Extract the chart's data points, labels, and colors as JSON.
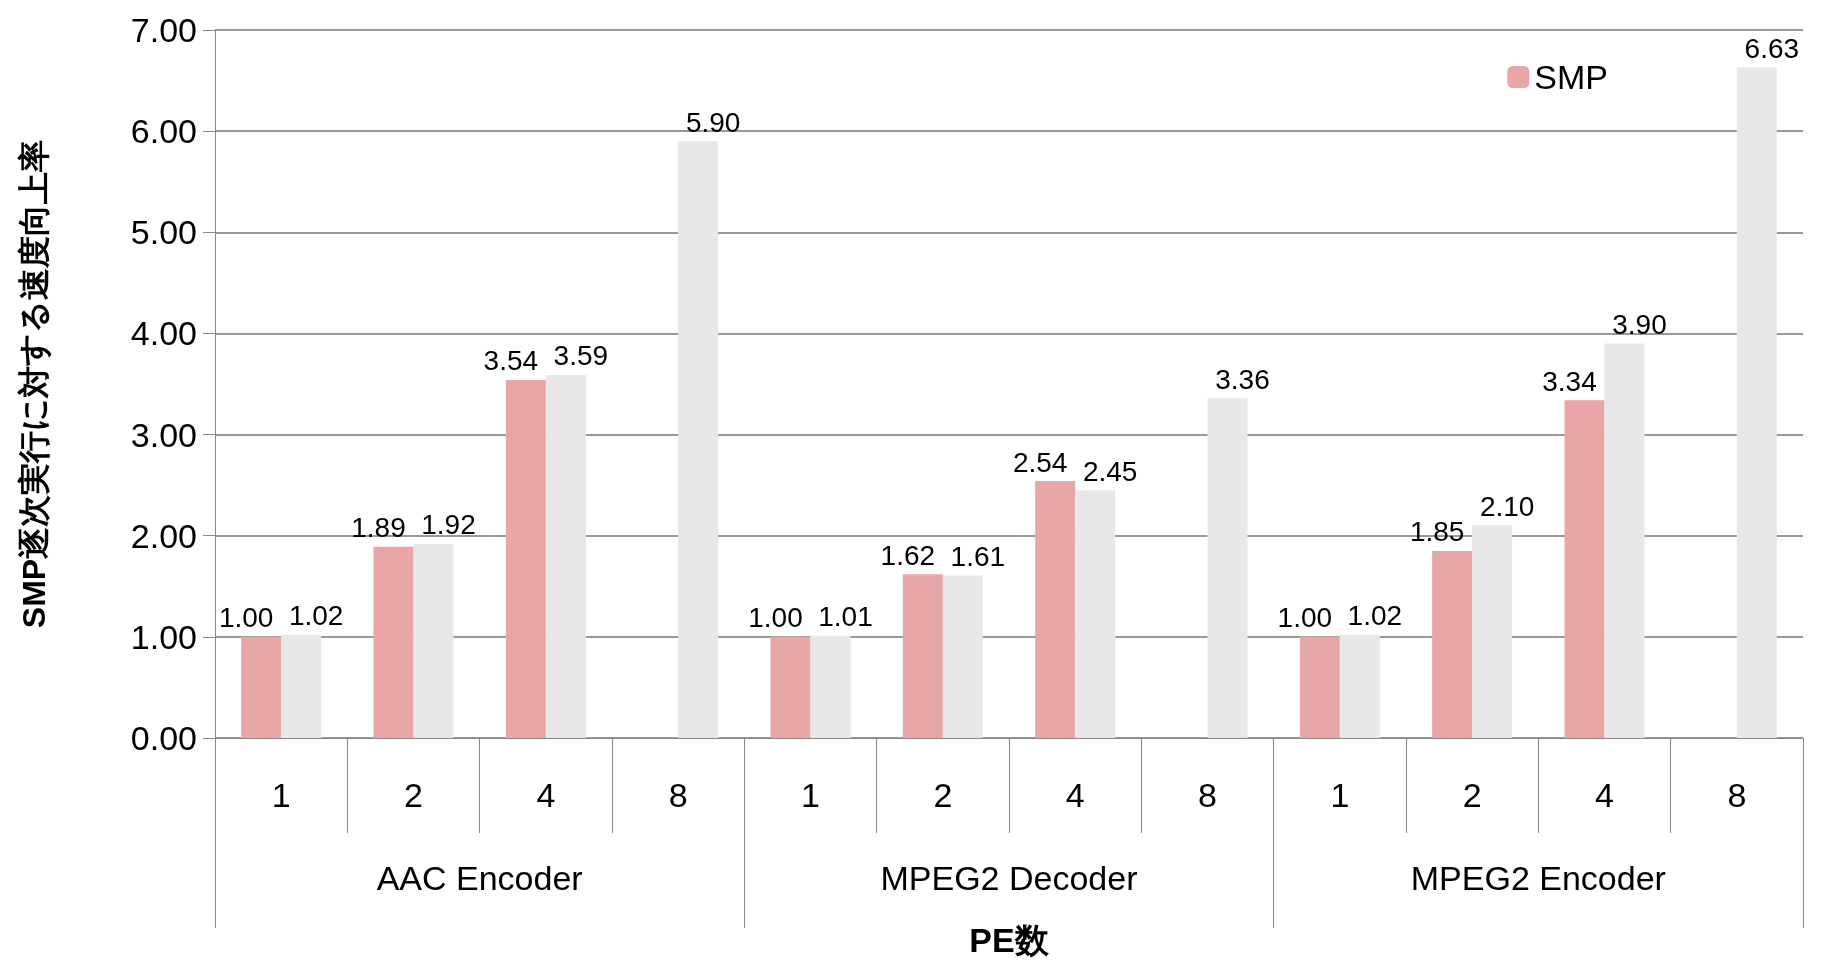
{
  "chart_data": {
    "type": "bar",
    "xlabel": "PE数",
    "ylabel": "SMP逐次実行に対する速度向上率",
    "categories": [
      "1",
      "2",
      "4",
      "8",
      "1",
      "2",
      "4",
      "8",
      "1",
      "2",
      "4",
      "8"
    ],
    "annotations": [
      "AAC Encoder",
      "MPEG2 Decoder",
      "MPEG2 Encoder"
    ],
    "series": [
      {
        "name": "SMP",
        "color": "#e8a6a6",
        "values": [
          1.0,
          1.89,
          3.54,
          null,
          1.0,
          1.62,
          2.54,
          null,
          1.0,
          1.85,
          3.34,
          null
        ],
        "value_labels": [
          "1.00",
          "1.89",
          "3.54",
          null,
          "1.00",
          "1.62",
          "2.54",
          null,
          "1.00",
          "1.85",
          "3.34",
          null
        ]
      },
      {
        "color": "#e8e8e8",
        "values": [
          1.02,
          1.92,
          3.59,
          5.9,
          1.01,
          1.61,
          2.45,
          3.36,
          1.02,
          2.1,
          3.9,
          6.63
        ],
        "value_labels": [
          "1.02",
          "1.92",
          "3.59",
          "5.90",
          "1.01",
          "1.61",
          "2.45",
          "3.36",
          "1.02",
          "2.10",
          "3.90",
          "6.63"
        ]
      }
    ],
    "ylim": [
      0,
      7
    ],
    "yticks": [
      {
        "value": 0,
        "label": "0.00"
      },
      {
        "value": 1,
        "label": "1.00"
      },
      {
        "value": 2,
        "label": "2.00"
      },
      {
        "value": 3,
        "label": "3.00"
      },
      {
        "value": 4,
        "label": "4.00"
      },
      {
        "value": 5,
        "label": "5.00"
      },
      {
        "value": 6,
        "label": "6.00"
      },
      {
        "value": 7,
        "label": "7.00"
      }
    ],
    "grid": "y",
    "legend": "top right"
  }
}
